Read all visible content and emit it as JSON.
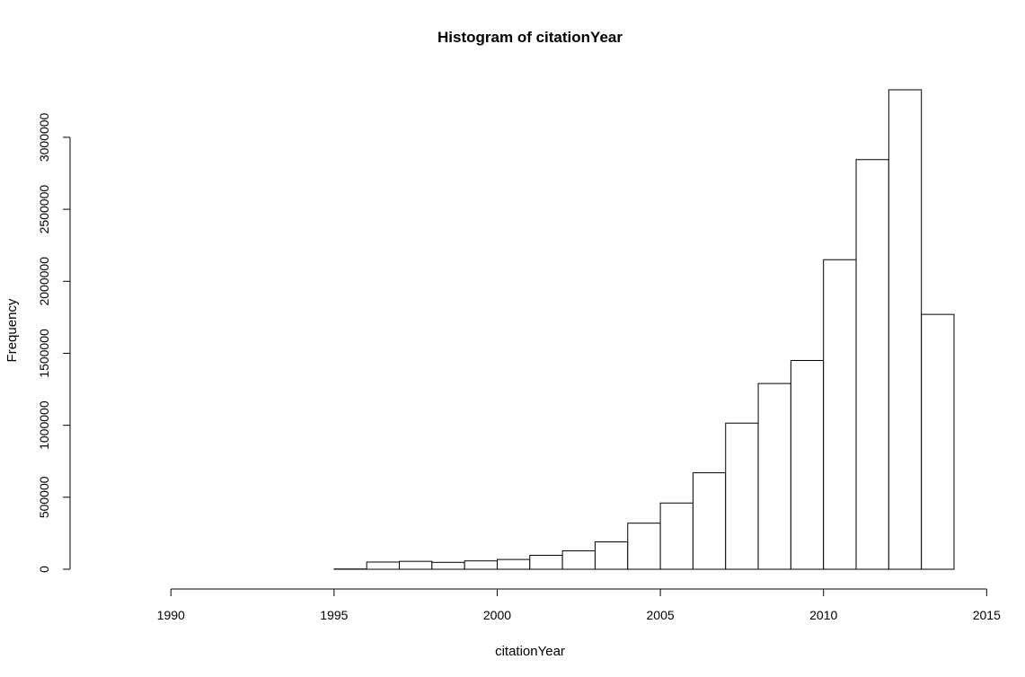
{
  "chart_data": {
    "type": "bar",
    "title": "Histogram of citationYear",
    "xlabel": "citationYear",
    "ylabel": "Frequency",
    "xlim": [
      1988,
      2014
    ],
    "ylim": [
      0,
      3330000
    ],
    "x_ticks": [
      1990,
      1995,
      2000,
      2005,
      2010,
      2015
    ],
    "y_ticks": [
      0,
      500000,
      1000000,
      1500000,
      2000000,
      2500000,
      3000000
    ],
    "grid": false,
    "legend": "none",
    "bin_edges": [
      1988,
      1989,
      1990,
      1991,
      1992,
      1993,
      1994,
      1995,
      1996,
      1997,
      1998,
      1999,
      2000,
      2001,
      2002,
      2003,
      2004,
      2005,
      2006,
      2007,
      2008,
      2009,
      2010,
      2011,
      2012,
      2013,
      2014
    ],
    "values": [
      0,
      0,
      0,
      0,
      0,
      0,
      0,
      2000,
      50000,
      55000,
      48000,
      58000,
      68000,
      97000,
      128000,
      190000,
      320000,
      460000,
      670000,
      1015000,
      1290000,
      1450000,
      2150000,
      2845000,
      3330000,
      1770000
    ],
    "bar_fill": "#ffffff",
    "bar_stroke": "#000000"
  }
}
